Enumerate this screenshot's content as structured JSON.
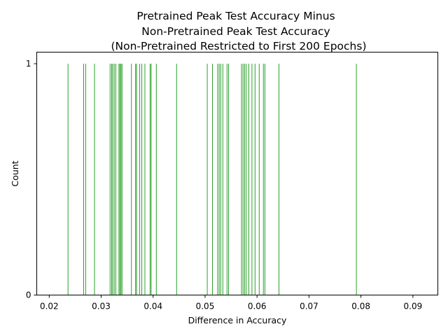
{
  "chart_data": {
    "type": "bar",
    "title_lines": [
      "Pretrained Peak Test Accuracy Minus",
      "Non-Pretrained Peak Test Accuracy",
      "(Non-Pretrained Restricted to First 200 Epochs)"
    ],
    "xlabel": "Difference in Accuracy",
    "ylabel": "Count",
    "xlim": [
      0.0176,
      0.0948
    ],
    "ylim": [
      0,
      1.05
    ],
    "x_ticks": [
      0.02,
      0.03,
      0.04,
      0.05,
      0.06,
      0.07,
      0.08,
      0.09
    ],
    "x_tick_labels": [
      "0.02",
      "0.03",
      "0.04",
      "0.05",
      "0.06",
      "0.07",
      "0.08",
      "0.09"
    ],
    "y_ticks": [
      0,
      1
    ],
    "y_tick_labels": [
      "0",
      "1"
    ],
    "bar_color": "#2ca02c",
    "bin_width": 0.0001,
    "grid": false,
    "series": [
      {
        "x": [
          0.0236,
          0.0266,
          0.027,
          0.0287,
          0.0317,
          0.032,
          0.0322,
          0.0325,
          0.0328,
          0.0334,
          0.0336,
          0.0338,
          0.034,
          0.0358,
          0.0366,
          0.0368,
          0.0374,
          0.0378,
          0.0384,
          0.0394,
          0.0396,
          0.0406,
          0.0445,
          0.0504,
          0.0514,
          0.0524,
          0.0527,
          0.053,
          0.0534,
          0.0542,
          0.0545,
          0.057,
          0.0573,
          0.0576,
          0.0579,
          0.0584,
          0.059,
          0.0596,
          0.0604,
          0.0612,
          0.0615,
          0.0642,
          0.0791
        ],
        "values": [
          1,
          1,
          1,
          1,
          1,
          1,
          1,
          1,
          1,
          1,
          1,
          1,
          1,
          1,
          1,
          1,
          1,
          1,
          1,
          1,
          1,
          1,
          1,
          1,
          1,
          1,
          1,
          1,
          1,
          1,
          1,
          1,
          1,
          1,
          1,
          1,
          1,
          1,
          1,
          1,
          1,
          1,
          1
        ]
      }
    ]
  }
}
